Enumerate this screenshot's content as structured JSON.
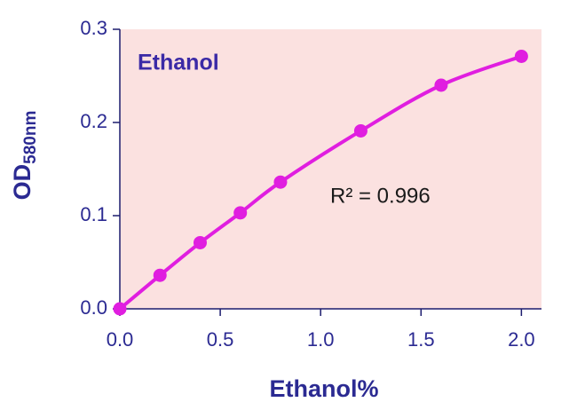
{
  "chart_data": {
    "type": "scatter",
    "title": "Ethanol",
    "annotation": "R² = 0.996",
    "x_label": "Ethanol%",
    "y_label": "OD",
    "y_label_subscript": "580nm",
    "x": [
      0,
      0.2,
      0.4,
      0.6,
      0.8,
      1.2,
      1.6,
      2.0
    ],
    "series": [
      {
        "color": "#e01ee0",
        "values": [
          0,
          0.036,
          0.071,
          0.103,
          0.136,
          0.191,
          0.24,
          0.271
        ]
      }
    ],
    "xlim": [
      0,
      2.1
    ],
    "ylim": [
      0,
      0.3
    ],
    "xticks": [
      {
        "value": 0,
        "label": "0.0"
      },
      {
        "value": 0.5,
        "label": "0.5"
      },
      {
        "value": 1,
        "label": "1.0"
      },
      {
        "value": 1.5,
        "label": "1.5"
      },
      {
        "value": 2,
        "label": "2.0"
      }
    ],
    "yticks": [
      {
        "value": 0,
        "label": "0.0"
      },
      {
        "value": 0.1,
        "label": "0.1"
      },
      {
        "value": 0.2,
        "label": "0.2"
      },
      {
        "value": 0.3,
        "label": "0.3"
      }
    ],
    "plot_background": "#fbe1e0",
    "fit_line": true
  }
}
